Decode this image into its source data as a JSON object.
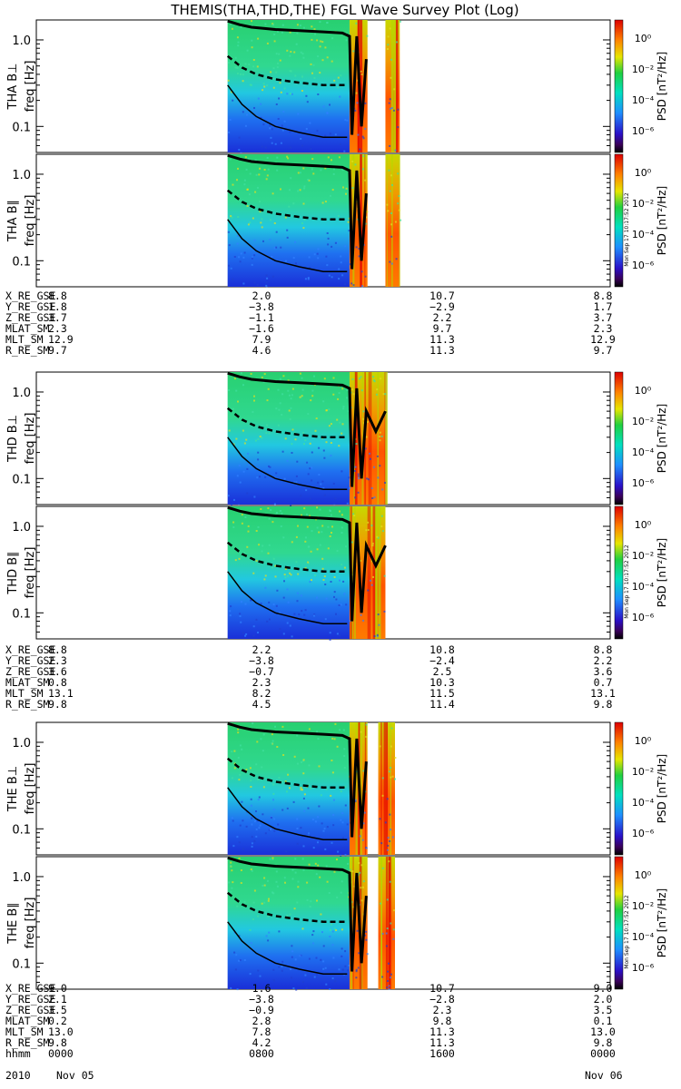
{
  "title": "THEMIS(THA,THD,THE) FGL Wave Survey Plot (Log)",
  "colorbar": {
    "label": "PSD [nT²/Hz]",
    "ticks": [
      "10⁰",
      "10⁻²",
      "10⁻⁴",
      "10⁻⁶"
    ],
    "stamp": "Mon Sep 17 10:17:52 2012"
  },
  "chart_data": [
    {
      "type": "heatmap",
      "probe": "THA",
      "component": "B⊥",
      "ylabel": "THA B⊥",
      "yunit": "freq [Hz]",
      "yticks": [
        "1.0",
        "0.1"
      ],
      "yscale": "log",
      "segments": [
        [
          8.0,
          13.85
        ],
        [
          14.6,
          15.2
        ]
      ],
      "curves": {
        "fce_like": [
          [
            8.0,
            1.65
          ],
          [
            9.0,
            1.4
          ],
          [
            10.5,
            1.3
          ],
          [
            11.5,
            1.25
          ],
          [
            12.0,
            1.2
          ]
        ],
        "half": [
          [
            8.0,
            0.65
          ],
          [
            9.0,
            0.45
          ],
          [
            10.0,
            0.34
          ],
          [
            11.0,
            0.3
          ],
          [
            12.0,
            0.3
          ]
        ],
        "tenth": [
          [
            8.0,
            0.3
          ],
          [
            9.0,
            0.14
          ],
          [
            10.0,
            0.09
          ],
          [
            11.0,
            0.075
          ],
          [
            12.0,
            0.075
          ]
        ]
      }
    },
    {
      "type": "heatmap",
      "probe": "THA",
      "component": "B∥",
      "ylabel": "THA B∥",
      "yunit": "freq [Hz]",
      "yticks": [
        "1.0",
        "0.1"
      ],
      "yscale": "log",
      "segments": [
        [
          8.0,
          13.85
        ],
        [
          14.6,
          15.2
        ]
      ]
    },
    {
      "type": "heatmap",
      "probe": "THD",
      "component": "B⊥",
      "ylabel": "THD B⊥",
      "yunit": "freq [Hz]",
      "yticks": [
        "1.0",
        "0.1"
      ],
      "yscale": "log",
      "segments": [
        [
          8.0,
          14.6
        ]
      ]
    },
    {
      "type": "heatmap",
      "probe": "THD",
      "component": "B∥",
      "ylabel": "THD B∥",
      "yunit": "freq [Hz]",
      "yticks": [
        "1.0",
        "0.1"
      ],
      "yscale": "log",
      "segments": [
        [
          8.0,
          14.6
        ]
      ]
    },
    {
      "type": "heatmap",
      "probe": "THE",
      "component": "B⊥",
      "ylabel": "THE B⊥",
      "yunit": "freq [Hz]",
      "yticks": [
        "1.0",
        "0.1"
      ],
      "yscale": "log",
      "segments": [
        [
          8.0,
          13.85
        ],
        [
          14.3,
          15.0
        ]
      ]
    },
    {
      "type": "heatmap",
      "probe": "THE",
      "component": "B∥",
      "ylabel": "THE B∥",
      "yunit": "freq [Hz]",
      "yticks": [
        "1.0",
        "0.1"
      ],
      "yscale": "log",
      "segments": [
        [
          8.0,
          13.85
        ],
        [
          14.3,
          15.0
        ]
      ]
    }
  ],
  "ephemeris_tables": [
    {
      "probe": "THA",
      "rows": [
        {
          "name": "X_RE_GSE",
          "values": [
            "8.8",
            "2.0",
            "10.7",
            "8.8"
          ]
        },
        {
          "name": "Y_RE_GSE",
          "values": [
            "1.8",
            "−3.8",
            "−2.9",
            "1.7"
          ]
        },
        {
          "name": "Z_RE_GSE",
          "values": [
            "3.7",
            "−1.1",
            "2.2",
            "3.7"
          ]
        },
        {
          "name": "MLAT_SM",
          "values": [
            "2.3",
            "−1.6",
            "9.7",
            "2.3"
          ]
        },
        {
          "name": "MLT_SM",
          "values": [
            "12.9",
            "7.9",
            "11.3",
            "12.9"
          ]
        },
        {
          "name": "R_RE_SM",
          "values": [
            "9.7",
            "4.6",
            "11.3",
            "9.7"
          ]
        }
      ]
    },
    {
      "probe": "THD",
      "rows": [
        {
          "name": "X_RE_GSE",
          "values": [
            "8.8",
            "2.2",
            "10.8",
            "8.8"
          ]
        },
        {
          "name": "Y_RE_GSE",
          "values": [
            "2.3",
            "−3.8",
            "−2.4",
            "2.2"
          ]
        },
        {
          "name": "Z_RE_GSE",
          "values": [
            "3.6",
            "−0.7",
            "2.5",
            "3.6"
          ]
        },
        {
          "name": "MLAT_SM",
          "values": [
            "0.8",
            "2.3",
            "10.3",
            "0.7"
          ]
        },
        {
          "name": "MLT_SM",
          "values": [
            "13.1",
            "8.2",
            "11.5",
            "13.1"
          ]
        },
        {
          "name": "R_RE_SM",
          "values": [
            "9.8",
            "4.5",
            "11.4",
            "9.8"
          ]
        }
      ]
    },
    {
      "probe": "THE",
      "rows": [
        {
          "name": "X_RE_GSE",
          "values": [
            "9.0",
            "1.6",
            "10.7",
            "9.0"
          ]
        },
        {
          "name": "Y_RE_GSE",
          "values": [
            "2.1",
            "−3.8",
            "−2.8",
            "2.0"
          ]
        },
        {
          "name": "Z_RE_GSE",
          "values": [
            "3.5",
            "−0.9",
            "2.3",
            "3.5"
          ]
        },
        {
          "name": "MLAT_SM",
          "values": [
            "0.2",
            "2.8",
            "9.8",
            "0.1"
          ]
        },
        {
          "name": "MLT_SM",
          "values": [
            "13.0",
            "7.8",
            "11.3",
            "13.0"
          ]
        },
        {
          "name": "R_RE_SM",
          "values": [
            "9.8",
            "4.2",
            "11.3",
            "9.8"
          ]
        },
        {
          "name": "hhmm",
          "values": [
            "0000",
            "0800",
            "1600",
            "0000"
          ]
        }
      ]
    }
  ],
  "time_axis": {
    "year": "2010",
    "start_date": "Nov 05",
    "end_date": "Nov 06"
  }
}
